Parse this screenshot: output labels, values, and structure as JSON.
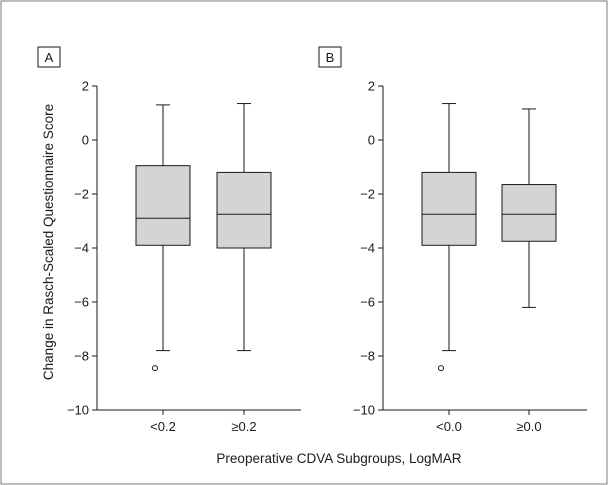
{
  "chart_data": [
    {
      "type": "box",
      "panel_label": "A",
      "ylabel": "Change in Rasch-Scaled Questionnaire Score",
      "ylim": [
        -10,
        2
      ],
      "yticks": [
        2,
        0,
        -2,
        -4,
        -6,
        -8,
        -10
      ],
      "categories": [
        "<0.2",
        "≥0.2"
      ],
      "boxes": [
        {
          "category": "<0.2",
          "whisker_low": -7.8,
          "q1": -3.9,
          "median": -2.9,
          "q3": -0.95,
          "whisker_high": 1.3,
          "outliers": [
            -8.45
          ]
        },
        {
          "category": "≥0.2",
          "whisker_low": -7.8,
          "q1": -4.0,
          "median": -2.75,
          "q3": -1.2,
          "whisker_high": 1.35,
          "outliers": []
        }
      ]
    },
    {
      "type": "box",
      "panel_label": "B",
      "ylim": [
        -10,
        2
      ],
      "yticks": [
        2,
        0,
        -2,
        -4,
        -6,
        -8,
        -10
      ],
      "categories": [
        "<0.0",
        "≥0.0"
      ],
      "boxes": [
        {
          "category": "<0.0",
          "whisker_low": -7.8,
          "q1": -3.9,
          "median": -2.75,
          "q3": -1.2,
          "whisker_high": 1.35,
          "outliers": [
            -8.45
          ]
        },
        {
          "category": "≥0.0",
          "whisker_low": -6.2,
          "q1": -3.75,
          "median": -2.75,
          "q3": -1.65,
          "whisker_high": 1.15,
          "outliers": []
        }
      ]
    }
  ],
  "xlabel": "Preoperative CDVA Subgroups, LogMAR",
  "colors": {
    "box_fill": "#d4d4d4",
    "stroke": "#1a1a1a",
    "frame": "#7a7a7a"
  }
}
